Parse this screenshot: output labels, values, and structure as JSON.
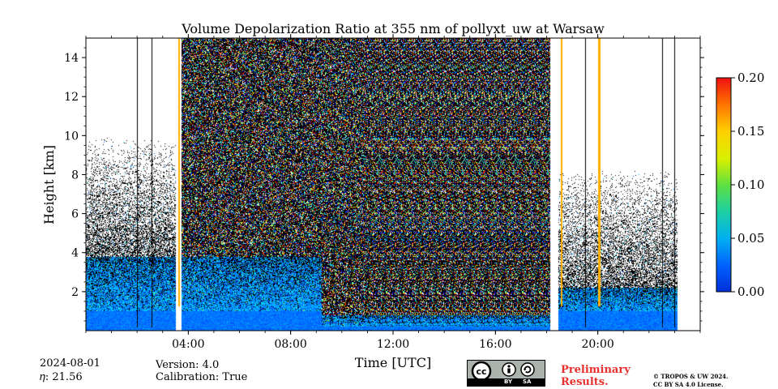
{
  "chart_data": {
    "type": "heatmap",
    "title": "Volume Depolarization Ratio at 355 nm of pollyxt_uw at Warsaw",
    "xlabel": "Time [UTC]",
    "ylabel": "Height [km]",
    "xlim_hours": [
      0,
      24
    ],
    "ylim_km": [
      0,
      15
    ],
    "x_ticks": [
      {
        "hour": 4,
        "label": "04:00"
      },
      {
        "hour": 8,
        "label": "08:00"
      },
      {
        "hour": 12,
        "label": "12:00"
      },
      {
        "hour": 16,
        "label": "16:00"
      },
      {
        "hour": 20,
        "label": "20:00"
      }
    ],
    "y_ticks": [
      {
        "value": 2,
        "label": "2"
      },
      {
        "value": 4,
        "label": "4"
      },
      {
        "value": 6,
        "label": "6"
      },
      {
        "value": 8,
        "label": "8"
      },
      {
        "value": 10,
        "label": "10"
      },
      {
        "value": 12,
        "label": "12"
      },
      {
        "value": 14,
        "label": "14"
      }
    ],
    "colorbar": {
      "min": 0.0,
      "max": 0.2,
      "ticks": [
        "0.00",
        "0.05",
        "0.10",
        "0.15",
        "0.20"
      ],
      "colormap": "jet"
    },
    "features": {
      "data_end_hour": 23.1,
      "data_gaps_hours": [
        [
          3.5,
          3.75
        ],
        [
          18.15,
          18.45
        ]
      ],
      "aerosol_layer_top_km": [
        {
          "from_hour": 0,
          "to_hour": 9.2,
          "top_km": 3.8,
          "low_km": 1.0
        },
        {
          "from_hour": 9.2,
          "to_hour": 18.4,
          "top_km": 0.8,
          "low_km": 0.2
        },
        {
          "from_hour": 18.4,
          "to_hour": 23.1,
          "top_km": 2.2,
          "low_km": 1.0
        }
      ],
      "cloud_noise_hours": [
        3.75,
        18.15
      ],
      "profile_lines_hours": [
        2.0,
        2.55,
        19.5,
        22.5,
        23.0
      ],
      "bright_profile_hours": [
        3.6,
        18.55,
        20.0,
        20.05
      ]
    }
  },
  "footer": {
    "date": "2024-08-01",
    "eta": "𝜂: 21.56",
    "version": "Version: 4.0",
    "calibration": "Calibration: True",
    "preliminary_line1": "Preliminary",
    "preliminary_line2": "Results.",
    "copyright_line1": "© TROPOS & UW 2024.",
    "copyright_line2": "CC BY SA 4.0 License.",
    "cc_label": "cc",
    "by_label": "BY",
    "sa_label": "SA"
  },
  "colors": {
    "heatmap_blue": "#0a5fe0",
    "colorbar_low": "#0033cc",
    "colorbar_high": "#ff2200",
    "preliminary": "#e8312f"
  }
}
